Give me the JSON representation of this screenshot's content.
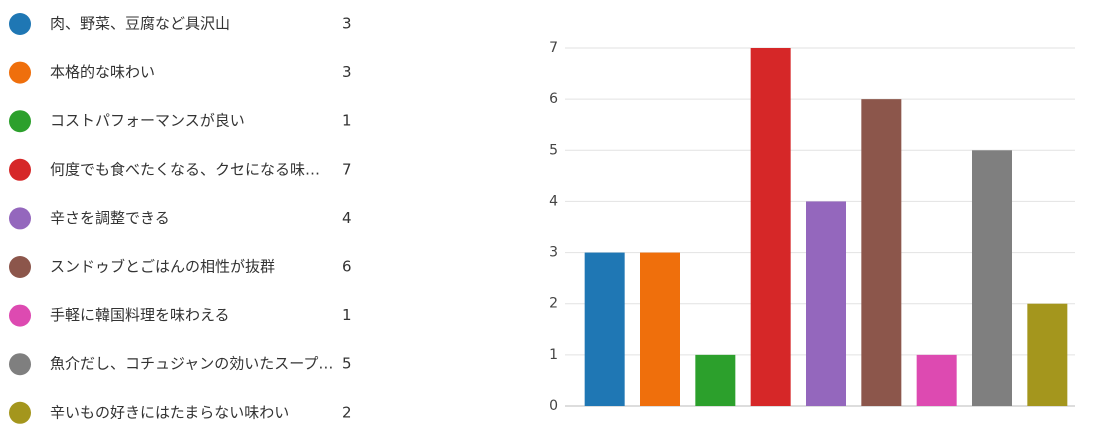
{
  "chart_data": {
    "type": "bar",
    "categories": [
      "肉、野菜、豆腐など具沢山",
      "本格的な味わい",
      "コストパフォーマンスが良い",
      "何度でも食べたくなる、クセになる味…",
      "辛さを調整できる",
      "スンドゥブとごはんの相性が抜群",
      "手軽に韓国料理を味わえる",
      "魚介だし、コチュジャンの効いたスープ…",
      "辛いもの好きにはたまらない味わい"
    ],
    "values": [
      3,
      3,
      1,
      7,
      4,
      6,
      1,
      5,
      2
    ],
    "colors": [
      "#1f77b4",
      "#ef6f0c",
      "#2ca02c",
      "#d62728",
      "#9467bd",
      "#8c564b",
      "#dd4ab1",
      "#7f7f7f",
      "#a4961d"
    ],
    "ylim": [
      0,
      7
    ],
    "yticks": [
      0,
      1,
      2,
      3,
      4,
      5,
      6,
      7
    ],
    "grid": true
  }
}
